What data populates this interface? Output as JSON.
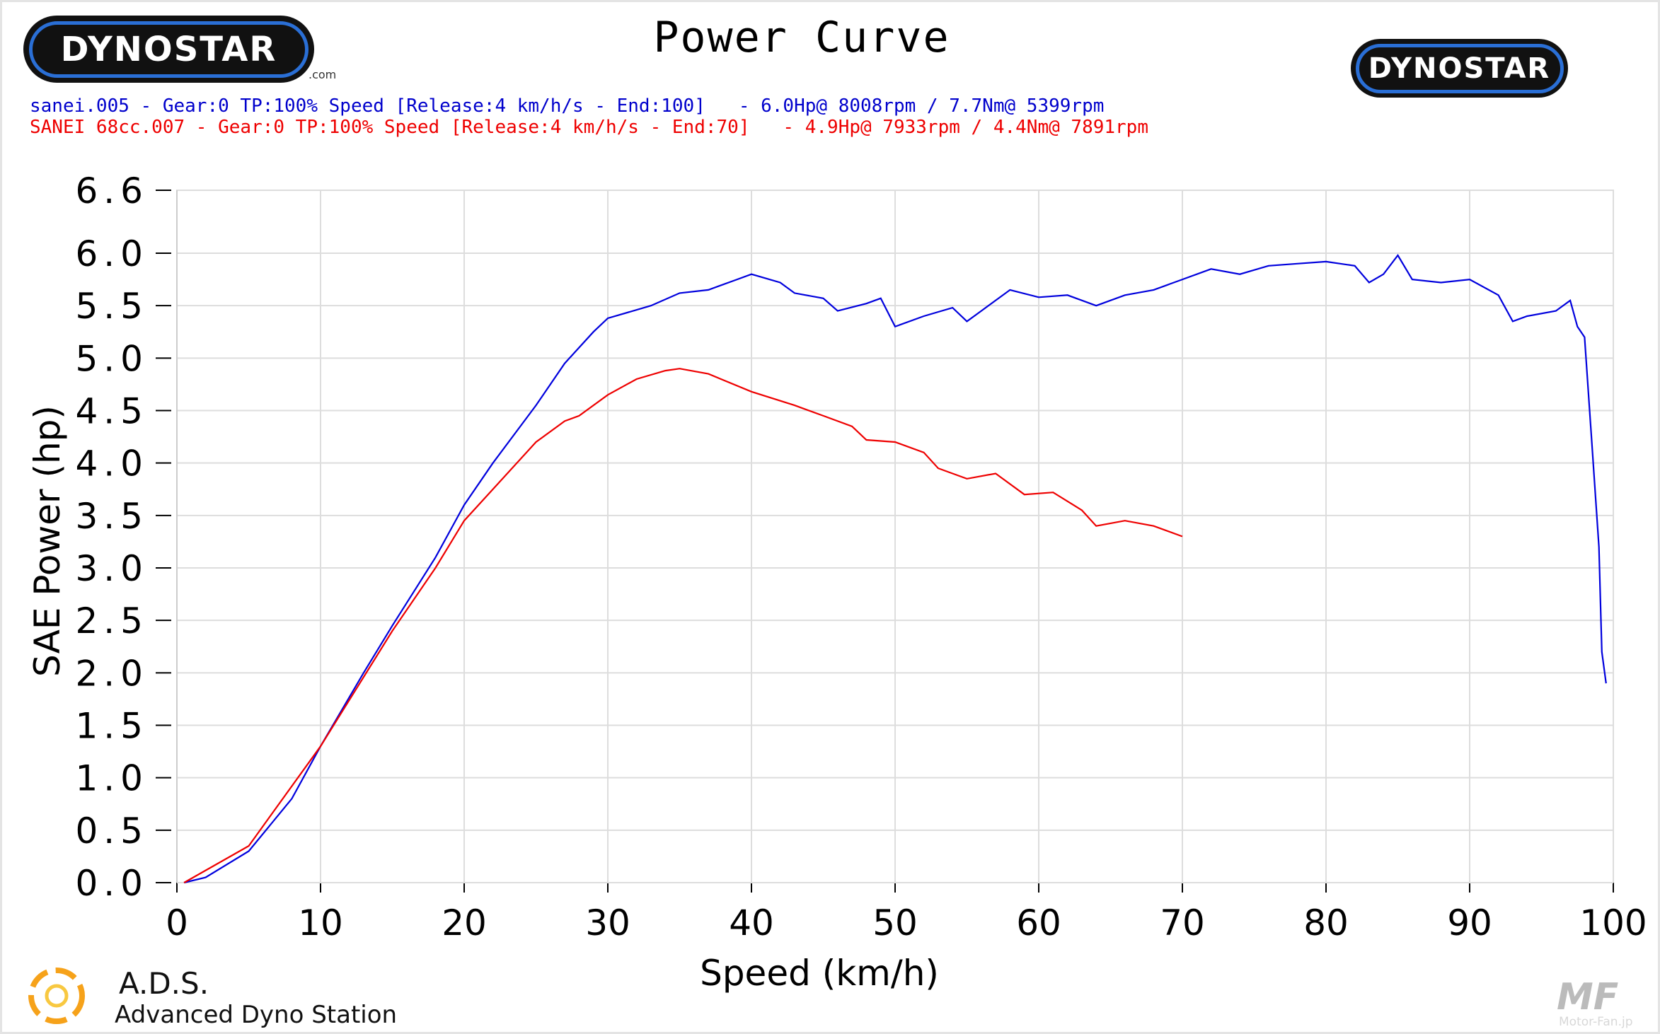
{
  "branding": {
    "logo_text": "DYNOSTAR",
    "logo_suffix": ".com",
    "ads_title": "A.D.S.",
    "ads_subtitle": "Advanced Dyno Station",
    "watermark": "MF",
    "watermark_site": "Motor-Fan.jp"
  },
  "colors": {
    "run1": "#0000dd",
    "run2": "#ee0000",
    "grid": "#dddddd"
  },
  "chart_data": {
    "type": "line",
    "title": "Power Curve",
    "xlabel": "Speed (km/h)",
    "ylabel": "SAE Power (hp)",
    "xlim": [
      0,
      100
    ],
    "ylim": [
      0,
      6.6
    ],
    "xticks": [
      "0",
      "10",
      "20",
      "30",
      "40",
      "50",
      "60",
      "70",
      "80",
      "90",
      "100"
    ],
    "yticks": [
      "0.0",
      "0.5",
      "1.0",
      "1.5",
      "2.0",
      "2.5",
      "3.0",
      "3.5",
      "4.0",
      "4.5",
      "5.0",
      "5.5",
      "6.0",
      "6.6"
    ],
    "ytick_values": [
      0,
      0.5,
      1,
      1.5,
      2,
      2.5,
      3,
      3.5,
      4,
      4.5,
      5,
      5.5,
      6,
      6.6
    ],
    "grid": true,
    "legend": [
      "sanei.005 - Gear:0 TP:100% Speed [Release:4 km/h/s - End:100]   - 6.0Hp@ 8008rpm / 7.7Nm@ 5399rpm",
      "SANEI 68cc.007 - Gear:0 TP:100% Speed [Release:4 km/h/s - End:70]   - 4.9Hp@ 7933rpm / 4.4Nm@ 7891rpm"
    ],
    "series": [
      {
        "name": "sanei.005",
        "x": [
          0.5,
          2,
          5,
          8,
          10,
          13,
          15,
          18,
          20,
          22,
          25,
          27,
          29,
          30,
          33,
          35,
          37,
          39,
          40,
          42,
          43,
          45,
          46,
          48,
          49,
          50,
          52,
          54,
          55,
          56,
          58,
          60,
          62,
          64,
          66,
          68,
          70,
          72,
          74,
          76,
          78,
          80,
          82,
          83,
          84,
          85,
          86,
          88,
          90,
          92,
          93,
          94,
          96,
          97,
          97.5,
          98,
          98.5,
          99,
          99.2,
          99.5
        ],
        "y": [
          0,
          0.05,
          0.3,
          0.8,
          1.3,
          2.0,
          2.45,
          3.1,
          3.6,
          4.0,
          4.55,
          4.95,
          5.25,
          5.38,
          5.5,
          5.62,
          5.65,
          5.75,
          5.8,
          5.72,
          5.62,
          5.57,
          5.45,
          5.52,
          5.57,
          5.3,
          5.4,
          5.48,
          5.35,
          5.45,
          5.65,
          5.58,
          5.6,
          5.5,
          5.6,
          5.65,
          5.75,
          5.85,
          5.8,
          5.88,
          5.9,
          5.92,
          5.88,
          5.72,
          5.8,
          5.98,
          5.75,
          5.72,
          5.75,
          5.6,
          5.35,
          5.4,
          5.45,
          5.55,
          5.3,
          5.2,
          4.2,
          3.2,
          2.2,
          1.9
        ]
      },
      {
        "name": "SANEI 68cc.007",
        "x": [
          0.5,
          5,
          10,
          15,
          18,
          20,
          22,
          25,
          27,
          28,
          30,
          32,
          34,
          35,
          37,
          40,
          43,
          45,
          47,
          48,
          50,
          52,
          53,
          55,
          57,
          59,
          61,
          63,
          64,
          66,
          68,
          70
        ],
        "y": [
          0,
          0.35,
          1.3,
          2.4,
          3.0,
          3.45,
          3.75,
          4.2,
          4.4,
          4.45,
          4.65,
          4.8,
          4.88,
          4.9,
          4.85,
          4.68,
          4.55,
          4.45,
          4.35,
          4.22,
          4.2,
          4.1,
          3.95,
          3.85,
          3.9,
          3.7,
          3.72,
          3.55,
          3.4,
          3.45,
          3.4,
          3.3
        ]
      }
    ]
  }
}
